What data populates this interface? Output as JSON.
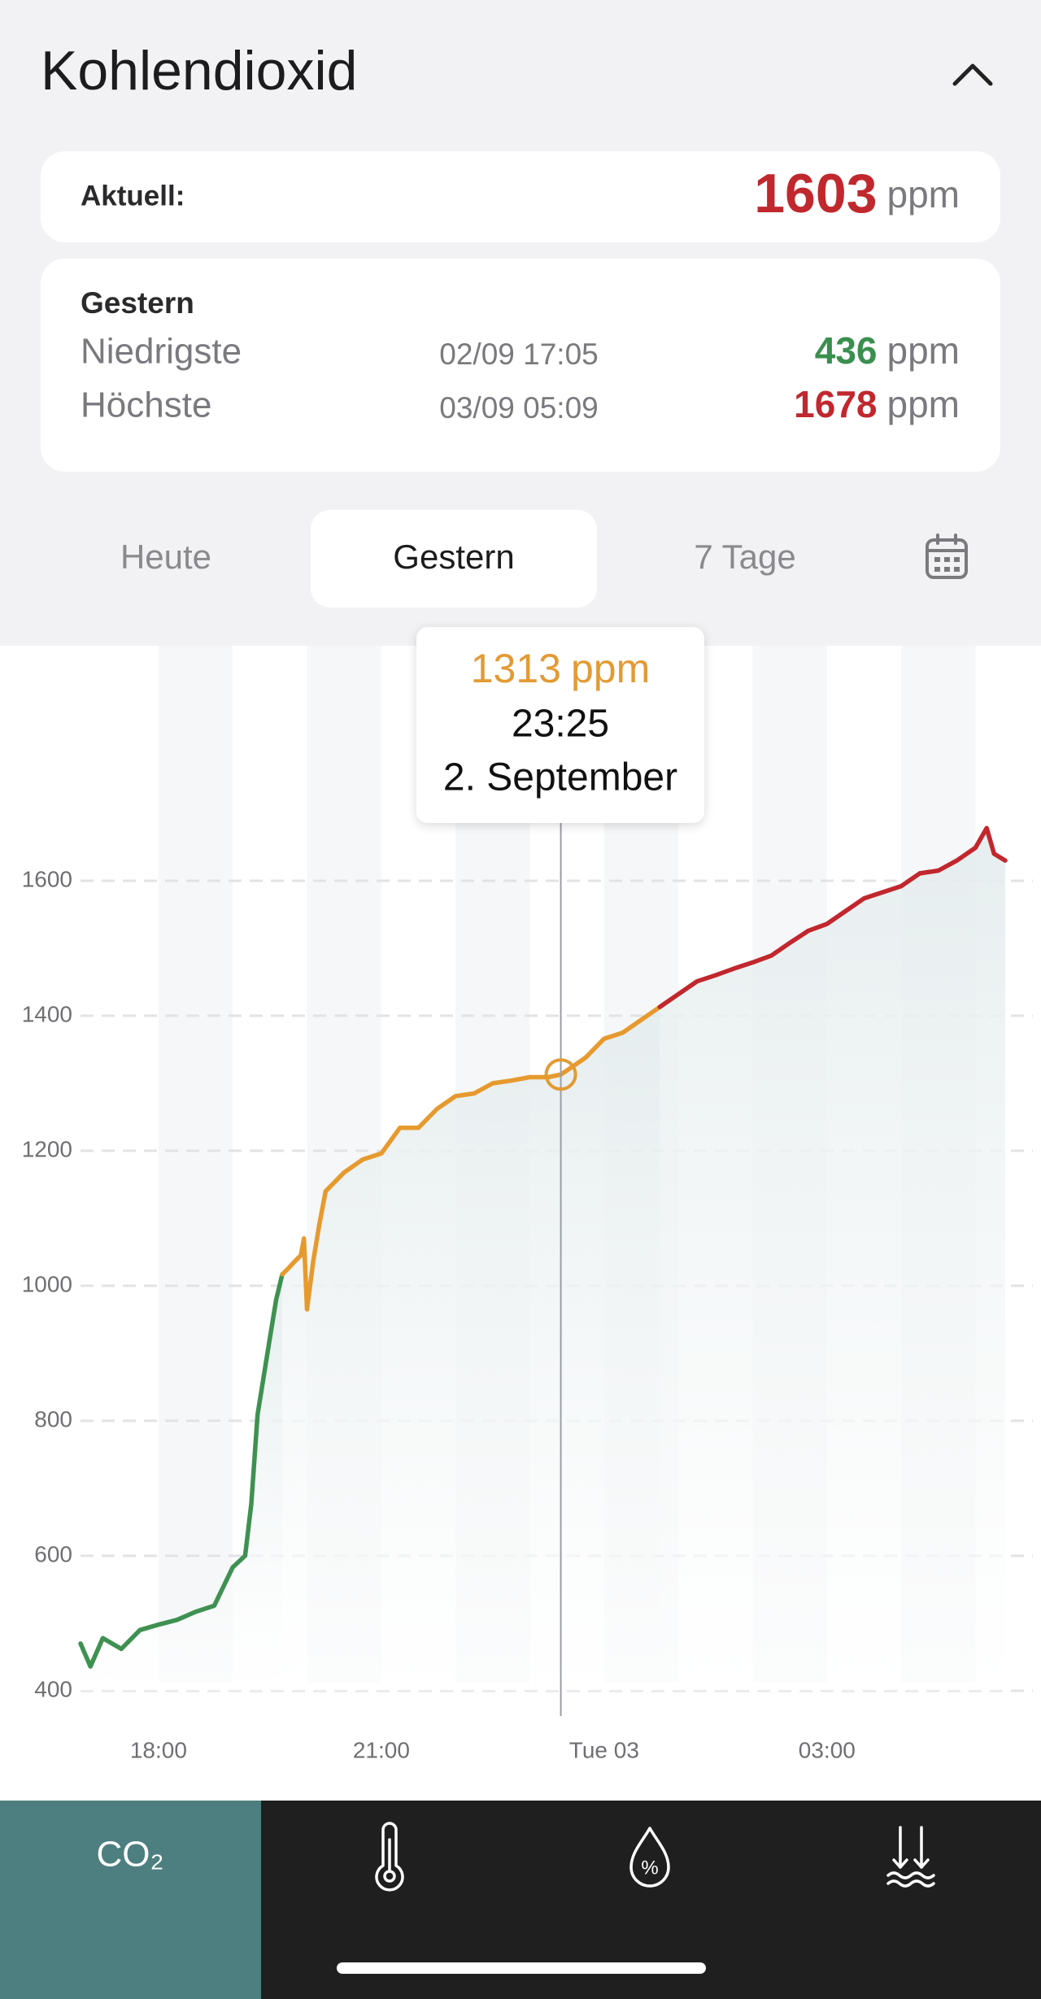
{
  "header": {
    "title": "Kohlendioxid"
  },
  "current": {
    "label": "Aktuell:",
    "value": 1603,
    "unit": "ppm"
  },
  "yesterday": {
    "title": "Gestern",
    "rows": [
      {
        "label": "Niedrigste",
        "time": "02/09 17:05",
        "value": 436,
        "unit": "ppm"
      },
      {
        "label": "Höchste",
        "time": "03/09 05:09",
        "value": 1678,
        "unit": "ppm"
      }
    ]
  },
  "tabs": [
    "Heute",
    "Gestern",
    "7 Tage"
  ],
  "selected_tab": 1,
  "tooltip": {
    "value": 1313,
    "unit": "ppm",
    "time": "23:25",
    "date": "2. September",
    "x": 23.4167,
    "color": "#e39a33"
  },
  "chart_data": {
    "type": "line",
    "x": [
      16.95,
      17.0833,
      17.25,
      17.5,
      17.75,
      18,
      18.25,
      18.5,
      18.75,
      19,
      19.1667,
      19.25,
      19.3333,
      19.4167,
      19.5,
      19.5833,
      19.6667,
      19.75,
      19.8333,
      19.9167,
      19.9583,
      20,
      20.0833,
      20.1667,
      20.25,
      20.5,
      20.75,
      21,
      21.25,
      21.5,
      21.75,
      22,
      22.25,
      22.5,
      22.75,
      23,
      23.25,
      23.4167,
      23.5,
      23.75,
      24,
      24.25,
      24.5,
      24.75,
      25,
      25.25,
      25.5,
      25.75,
      26,
      26.25,
      26.5,
      26.75,
      27,
      27.25,
      27.5,
      27.75,
      28,
      28.25,
      28.5,
      28.75,
      29,
      29.15,
      29.25,
      29.4
    ],
    "series": [
      {
        "color": "#3f9151",
        "values": [
          470,
          436,
          478,
          462,
          490,
          498,
          505,
          517,
          526,
          583,
          600,
          677,
          809,
          866,
          923,
          979,
          1017,
          null,
          null,
          null,
          null,
          null,
          null,
          null,
          null,
          null,
          null,
          null,
          null,
          null,
          null,
          null,
          null,
          null,
          null,
          null,
          null,
          null,
          null,
          null,
          null,
          null,
          null,
          null,
          null,
          null,
          null,
          null,
          null,
          null,
          null,
          null,
          null,
          null,
          null,
          null,
          null,
          null,
          null,
          null,
          null,
          null,
          null,
          null
        ]
      },
      {
        "color": "#e69a2e",
        "values": [
          null,
          null,
          null,
          null,
          null,
          null,
          null,
          null,
          null,
          null,
          null,
          null,
          null,
          null,
          null,
          null,
          1017,
          1026,
          1036,
          1045,
          1070,
          965,
          1036,
          1092,
          1140,
          1168,
          1187,
          1196,
          1234,
          1234,
          1262,
          1281,
          1285,
          1300,
          1304,
          1309,
          1309,
          1313,
          1319,
          1338,
          1366,
          1375,
          1394,
          1413,
          null,
          null,
          null,
          null,
          null,
          null,
          null,
          null,
          null,
          null,
          null,
          null,
          null,
          null,
          null,
          null,
          null,
          null,
          null,
          null
        ]
      },
      {
        "color": "#c1272d",
        "values": [
          null,
          null,
          null,
          null,
          null,
          null,
          null,
          null,
          null,
          null,
          null,
          null,
          null,
          null,
          null,
          null,
          null,
          null,
          null,
          null,
          null,
          null,
          null,
          null,
          null,
          null,
          null,
          null,
          null,
          null,
          null,
          null,
          null,
          null,
          null,
          null,
          null,
          null,
          null,
          null,
          null,
          null,
          null,
          1413,
          1432,
          1451,
          1460,
          1470,
          1479,
          1489,
          1508,
          1526,
          1536,
          1555,
          1574,
          1583,
          1592,
          1611,
          1615,
          1630,
          1649,
          1678,
          1640,
          1630
        ]
      }
    ],
    "xlim": [
      16.95,
      29.4
    ],
    "xticks": [
      {
        "value": 18,
        "label": "18:00"
      },
      {
        "value": 21,
        "label": "21:00"
      },
      {
        "value": 24,
        "label": "Tue 03"
      },
      {
        "value": 27,
        "label": "03:00"
      }
    ],
    "ylim": [
      400,
      1900
    ],
    "yticks": [
      400,
      600,
      800,
      1000,
      1200,
      1400,
      1600
    ],
    "grid": true
  },
  "nav": {
    "co2": "CO₂"
  }
}
